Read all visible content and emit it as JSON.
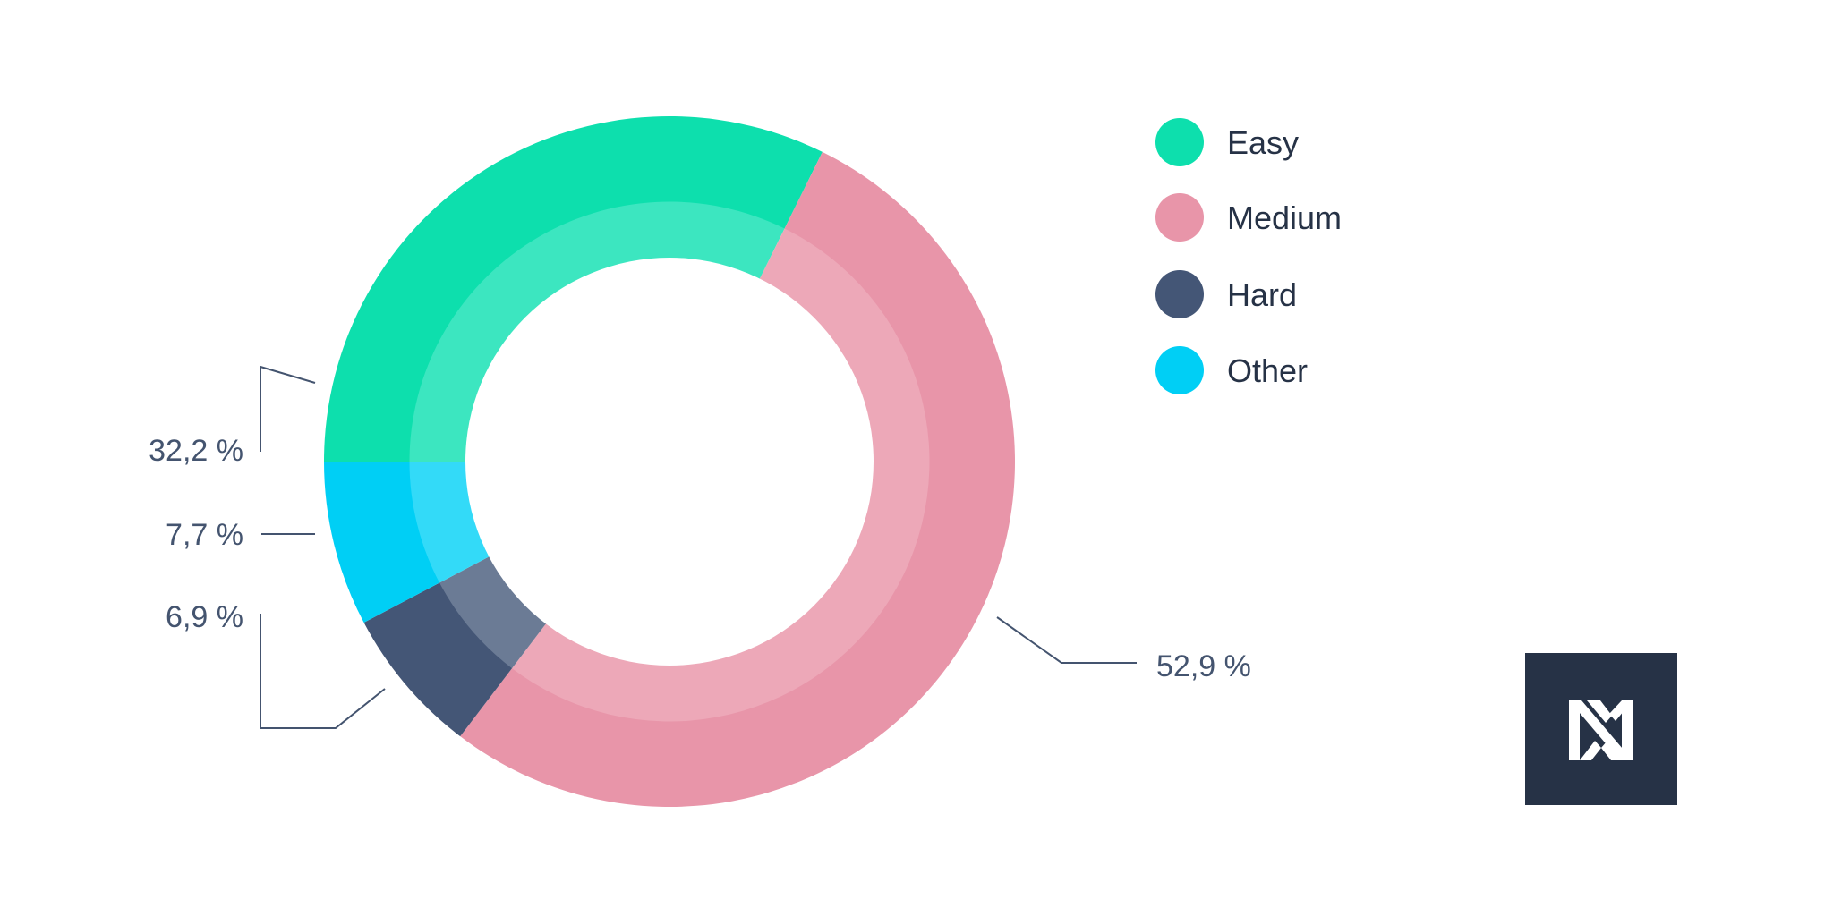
{
  "chart_data": {
    "type": "pie",
    "variant": "donut",
    "categories": [
      "Easy",
      "Medium",
      "Hard",
      "Other"
    ],
    "values": [
      32.2,
      52.9,
      6.9,
      7.7
    ],
    "value_labels": [
      "32,2 %",
      "52,9 %",
      "6,9 %",
      "7,7 %"
    ],
    "colors": [
      "#0ddfad",
      "#e895a9",
      "#445676",
      "#00cff5"
    ],
    "inner_ring_colors": [
      "#3ce6c0",
      "#eda8b8",
      "#6b7b95",
      "#33daf8"
    ],
    "title": "",
    "legend": {
      "position": "right",
      "items": [
        {
          "label": "Easy",
          "color": "#0ddfad"
        },
        {
          "label": "Medium",
          "color": "#e895a9"
        },
        {
          "label": "Hard",
          "color": "#445676"
        },
        {
          "label": "Other",
          "color": "#00cff5"
        }
      ]
    }
  },
  "logo": {
    "icon": "nm-monogram-logo",
    "background": "#263246",
    "foreground": "#ffffff"
  }
}
